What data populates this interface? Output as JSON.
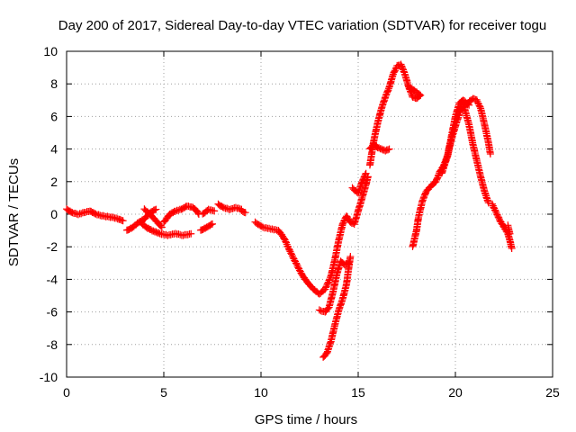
{
  "chart_data": {
    "type": "scatter",
    "title": "Day 200 of 2017, Sidereal Day-to-day VTEC variation (SDTVAR) for receiver togu",
    "xlabel": "GPS time / hours",
    "ylabel": "SDTVAR / TECUs",
    "xlim": [
      0,
      25
    ],
    "ylim": [
      -10,
      10
    ],
    "x_ticks": [
      0,
      5,
      10,
      15,
      20,
      25
    ],
    "y_ticks": [
      -10,
      -8,
      -6,
      -4,
      -2,
      0,
      2,
      4,
      6,
      8,
      10
    ],
    "grid": true,
    "marker": "+",
    "color": "#ff0000",
    "series": [
      {
        "segments": [
          [
            [
              0.0,
              0.3
            ],
            [
              0.3,
              0.1
            ],
            [
              0.6,
              0.0
            ],
            [
              0.9,
              0.1
            ],
            [
              1.2,
              0.2
            ],
            [
              1.5,
              0.0
            ],
            [
              1.8,
              -0.1
            ],
            [
              2.1,
              -0.15
            ],
            [
              2.4,
              -0.2
            ],
            [
              2.7,
              -0.3
            ],
            [
              2.9,
              -0.4
            ]
          ],
          [
            [
              3.1,
              -1.0
            ],
            [
              3.4,
              -0.8
            ],
            [
              3.7,
              -0.5
            ],
            [
              4.0,
              -0.3
            ],
            [
              4.3,
              0.1
            ],
            [
              4.6,
              0.3
            ]
          ],
          [
            [
              3.8,
              -0.5
            ],
            [
              4.1,
              -0.8
            ],
            [
              4.4,
              -1.0
            ],
            [
              4.8,
              -1.2
            ],
            [
              5.2,
              -1.3
            ],
            [
              5.6,
              -1.2
            ],
            [
              6.0,
              -1.3
            ],
            [
              6.4,
              -1.2
            ]
          ],
          [
            [
              4.0,
              0.3
            ],
            [
              4.3,
              0.0
            ],
            [
              4.6,
              -0.4
            ],
            [
              4.9,
              -0.8
            ]
          ],
          [
            [
              5.0,
              -0.5
            ],
            [
              5.3,
              0.0
            ],
            [
              5.6,
              0.2
            ],
            [
              5.9,
              0.3
            ],
            [
              6.2,
              0.5
            ],
            [
              6.5,
              0.4
            ],
            [
              6.7,
              0.2
            ],
            [
              6.8,
              0.0
            ]
          ],
          [
            [
              6.9,
              -1.0
            ],
            [
              7.2,
              -0.8
            ],
            [
              7.5,
              -0.6
            ]
          ],
          [
            [
              7.0,
              0.0
            ],
            [
              7.3,
              0.3
            ],
            [
              7.6,
              0.2
            ]
          ],
          [
            [
              7.8,
              0.6
            ],
            [
              8.1,
              0.4
            ],
            [
              8.4,
              0.3
            ],
            [
              8.7,
              0.4
            ],
            [
              9.0,
              0.3
            ]
          ],
          [
            [
              9.0,
              0.2
            ],
            [
              9.2,
              0.1
            ]
          ],
          [
            [
              9.7,
              -0.5
            ],
            [
              10.1,
              -0.8
            ],
            [
              10.5,
              -0.9
            ],
            [
              10.9,
              -1.0
            ],
            [
              11.2,
              -1.5
            ],
            [
              11.5,
              -2.3
            ],
            [
              11.8,
              -3.0
            ],
            [
              12.1,
              -3.7
            ],
            [
              12.4,
              -4.2
            ],
            [
              12.7,
              -4.6
            ],
            [
              13.0,
              -4.9
            ],
            [
              13.3,
              -4.6
            ],
            [
              13.6,
              -3.8
            ],
            [
              13.8,
              -2.8
            ],
            [
              14.0,
              -1.6
            ],
            [
              14.2,
              -0.6
            ],
            [
              14.4,
              -0.1
            ],
            [
              14.6,
              -0.5
            ],
            [
              14.8,
              -0.6
            ],
            [
              15.0,
              0.2
            ],
            [
              15.2,
              1.0
            ],
            [
              15.4,
              1.8
            ],
            [
              15.5,
              2.3
            ]
          ],
          [
            [
              13.0,
              -5.9
            ],
            [
              13.3,
              -6.0
            ],
            [
              13.5,
              -5.7
            ],
            [
              13.7,
              -4.8
            ],
            [
              13.9,
              -3.7
            ],
            [
              14.1,
              -2.9
            ],
            [
              14.3,
              -3.1
            ],
            [
              14.5,
              -3.0
            ]
          ],
          [
            [
              13.2,
              -8.8
            ],
            [
              13.4,
              -8.5
            ],
            [
              13.6,
              -7.8
            ],
            [
              13.8,
              -6.8
            ],
            [
              14.0,
              -5.9
            ],
            [
              14.2,
              -5.2
            ],
            [
              14.4,
              -4.3
            ],
            [
              14.5,
              -3.4
            ],
            [
              14.6,
              -2.6
            ]
          ],
          [
            [
              14.7,
              1.6
            ],
            [
              15.0,
              1.3
            ],
            [
              15.2,
              2.0
            ],
            [
              15.4,
              2.5
            ]
          ],
          [
            [
              15.6,
              4.0
            ],
            [
              15.8,
              4.3
            ],
            [
              16.0,
              4.1
            ],
            [
              16.2,
              4.0
            ],
            [
              16.4,
              3.9
            ],
            [
              16.6,
              4.0
            ]
          ],
          [
            [
              15.6,
              3.0
            ],
            [
              15.8,
              4.5
            ],
            [
              16.0,
              5.6
            ],
            [
              16.2,
              6.5
            ],
            [
              16.4,
              7.2
            ],
            [
              16.6,
              7.8
            ],
            [
              16.8,
              8.6
            ],
            [
              17.0,
              9.1
            ],
            [
              17.2,
              9.2
            ],
            [
              17.4,
              8.6
            ],
            [
              17.6,
              7.8
            ],
            [
              17.8,
              7.2
            ],
            [
              18.0,
              7.1
            ],
            [
              18.2,
              7.3
            ]
          ],
          [
            [
              17.6,
              7.8
            ],
            [
              17.9,
              7.6
            ],
            [
              18.2,
              7.3
            ]
          ],
          [
            [
              17.8,
              -2.0
            ],
            [
              18.0,
              -1.0
            ],
            [
              18.1,
              -0.2
            ],
            [
              18.3,
              0.8
            ],
            [
              18.5,
              1.4
            ],
            [
              18.8,
              1.8
            ],
            [
              19.0,
              2.0
            ],
            [
              19.2,
              2.6
            ],
            [
              19.4,
              3.0
            ],
            [
              19.6,
              3.6
            ],
            [
              19.8,
              4.8
            ],
            [
              20.0,
              6.0
            ],
            [
              20.2,
              6.8
            ],
            [
              20.4,
              7.0
            ],
            [
              20.7,
              6.7
            ]
          ],
          [
            [
              19.3,
              2.5
            ],
            [
              19.6,
              3.6
            ],
            [
              19.8,
              4.6
            ],
            [
              20.0,
              5.4
            ],
            [
              20.3,
              6.5
            ],
            [
              20.6,
              6.8
            ],
            [
              20.9,
              7.1
            ],
            [
              21.1,
              7.0
            ],
            [
              21.3,
              6.5
            ],
            [
              21.5,
              5.5
            ],
            [
              21.7,
              4.4
            ],
            [
              21.8,
              3.7
            ]
          ],
          [
            [
              20.4,
              6.8
            ],
            [
              20.7,
              5.5
            ],
            [
              20.9,
              4.3
            ],
            [
              21.1,
              3.3
            ],
            [
              21.3,
              2.3
            ],
            [
              21.5,
              1.4
            ],
            [
              21.7,
              0.7
            ]
          ],
          [
            [
              21.9,
              0.6
            ],
            [
              22.1,
              0.1
            ],
            [
              22.3,
              -0.4
            ],
            [
              22.5,
              -0.8
            ],
            [
              22.7,
              -1.2
            ],
            [
              22.8,
              -1.6
            ],
            [
              22.9,
              -2.1
            ]
          ],
          [
            [
              22.7,
              -0.7
            ],
            [
              22.8,
              -1.2
            ]
          ]
        ]
      }
    ]
  }
}
